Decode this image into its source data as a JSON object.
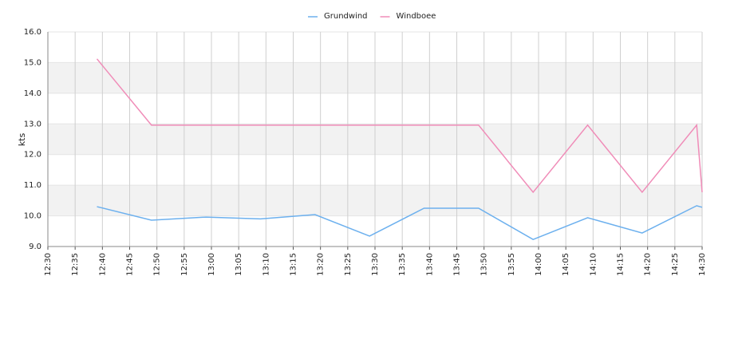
{
  "chart_data": {
    "type": "line",
    "y_label": "kts",
    "x": [
      "12:39",
      "12:49",
      "12:59",
      "13:09",
      "13:19",
      "13:29",
      "13:39",
      "13:49",
      "13:59",
      "14:09",
      "14:19",
      "14:29",
      "14:30"
    ],
    "series": [
      {
        "name": "Grundwind",
        "color": "#6cb0ee",
        "values": [
          10.3,
          9.86,
          9.96,
          9.9,
          10.04,
          9.34,
          10.25,
          10.25,
          9.23,
          9.94,
          9.44,
          10.33,
          10.28
        ]
      },
      {
        "name": "Windboee",
        "color": "#f08cb8",
        "values": [
          15.12,
          12.96,
          12.96,
          12.96,
          12.96,
          12.96,
          12.96,
          12.96,
          10.77,
          12.96,
          10.77,
          12.96,
          10.77
        ]
      }
    ],
    "xlim": [
      "12:30",
      "14:30"
    ],
    "xticks": [
      "12:30",
      "12:35",
      "12:40",
      "12:45",
      "12:50",
      "12:55",
      "13:00",
      "13:05",
      "13:10",
      "13:15",
      "13:20",
      "13:25",
      "13:30",
      "13:35",
      "13:40",
      "13:45",
      "13:50",
      "13:55",
      "14:00",
      "14:05",
      "14:10",
      "14:15",
      "14:20",
      "14:25",
      "14:30"
    ],
    "ylim": [
      9,
      16
    ],
    "yticks": [
      {
        "value": 9,
        "label": "9.0"
      },
      {
        "value": 10,
        "label": "10.0"
      },
      {
        "value": 11,
        "label": "11.0"
      },
      {
        "value": 12,
        "label": "12.0"
      },
      {
        "value": 13,
        "label": "13.0"
      },
      {
        "value": 14,
        "label": "14.0"
      },
      {
        "value": 15,
        "label": "15.0"
      },
      {
        "value": 16,
        "label": "16.0"
      }
    ],
    "grid": true,
    "legend": "top"
  }
}
